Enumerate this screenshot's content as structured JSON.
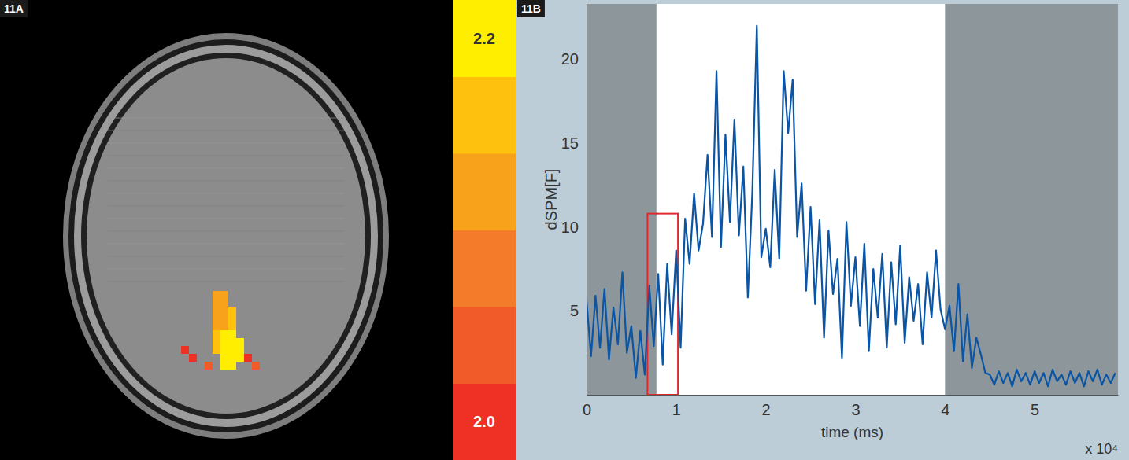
{
  "chart_data": [
    {
      "type": "heatmap",
      "label": "11A",
      "cells": [
        {
          "row": 37,
          "col": 27,
          "value": 2.12
        },
        {
          "row": 38,
          "col": 27,
          "value": 2.12
        },
        {
          "row": 39,
          "col": 27,
          "value": 2.12
        },
        {
          "row": 40,
          "col": 27,
          "value": 2.12
        },
        {
          "row": 41,
          "col": 27,
          "value": 2.12
        },
        {
          "row": 42,
          "col": 27,
          "value": 2.16
        },
        {
          "row": 43,
          "col": 27,
          "value": 2.16
        },
        {
          "row": 44,
          "col": 27,
          "value": 2.16
        },
        {
          "row": 37,
          "col": 28,
          "value": 2.12
        },
        {
          "row": 38,
          "col": 28,
          "value": 2.12
        },
        {
          "row": 39,
          "col": 28,
          "value": 2.12
        },
        {
          "row": 40,
          "col": 28,
          "value": 2.12
        },
        {
          "row": 41,
          "col": 28,
          "value": 2.12
        },
        {
          "row": 42,
          "col": 28,
          "value": 2.2
        },
        {
          "row": 43,
          "col": 28,
          "value": 2.2
        },
        {
          "row": 44,
          "col": 28,
          "value": 2.2
        },
        {
          "row": 45,
          "col": 28,
          "value": 2.2
        },
        {
          "row": 46,
          "col": 28,
          "value": 2.2
        },
        {
          "row": 39,
          "col": 29,
          "value": 2.15
        },
        {
          "row": 40,
          "col": 29,
          "value": 2.15
        },
        {
          "row": 41,
          "col": 29,
          "value": 2.15
        },
        {
          "row": 42,
          "col": 29,
          "value": 2.2
        },
        {
          "row": 43,
          "col": 29,
          "value": 2.2
        },
        {
          "row": 44,
          "col": 29,
          "value": 2.2
        },
        {
          "row": 45,
          "col": 29,
          "value": 2.2
        },
        {
          "row": 46,
          "col": 29,
          "value": 2.2
        },
        {
          "row": 43,
          "col": 30,
          "value": 2.18
        },
        {
          "row": 44,
          "col": 30,
          "value": 2.18
        },
        {
          "row": 45,
          "col": 30,
          "value": 2.18
        },
        {
          "row": 44,
          "col": 23,
          "value": 2.02
        },
        {
          "row": 45,
          "col": 24,
          "value": 2.03
        },
        {
          "row": 46,
          "col": 26,
          "value": 2.05
        },
        {
          "row": 46,
          "col": 32,
          "value": 2.04
        },
        {
          "row": 45,
          "col": 31,
          "value": 2.01
        }
      ],
      "colorbar": {
        "range": [
          2.0,
          2.2
        ],
        "ticks": [
          {
            "value": 2.0,
            "label": "2.0"
          },
          2.2
        ],
        "colors": [
          "#ee3124",
          "#f15a29",
          "#f47b2a",
          "#f8a11b",
          "#fec20e",
          "#ffee00"
        ]
      }
    },
    {
      "type": "line",
      "label": "11B",
      "y_label": "dSPM[F]",
      "x_label": "time (ms)",
      "x_exponent_label": "x 10⁴",
      "xlim": [
        0,
        5.93
      ],
      "ylim": [
        0,
        23.3
      ],
      "xticks": [
        0,
        1,
        2,
        3,
        4,
        5
      ],
      "yticks": [
        5,
        10,
        15,
        20
      ],
      "shaded_regions": [
        [
          0,
          0.78
        ],
        [
          4.0,
          5.93
        ]
      ],
      "highlight_window": {
        "x": [
          0.68,
          1.02
        ],
        "y": [
          0,
          10.8
        ]
      },
      "x": [
        0,
        0.05,
        0.1,
        0.15,
        0.2,
        0.25,
        0.3,
        0.35,
        0.4,
        0.45,
        0.5,
        0.55,
        0.6,
        0.65,
        0.7,
        0.75,
        0.8,
        0.85,
        0.9,
        0.95,
        1.0,
        1.05,
        1.1,
        1.15,
        1.2,
        1.25,
        1.3,
        1.35,
        1.4,
        1.45,
        1.5,
        1.55,
        1.6,
        1.65,
        1.7,
        1.75,
        1.8,
        1.85,
        1.9,
        1.95,
        2.0,
        2.05,
        2.1,
        2.15,
        2.2,
        2.25,
        2.3,
        2.35,
        2.4,
        2.45,
        2.5,
        2.55,
        2.6,
        2.65,
        2.7,
        2.75,
        2.8,
        2.85,
        2.9,
        2.95,
        3.0,
        3.05,
        3.1,
        3.15,
        3.2,
        3.25,
        3.3,
        3.35,
        3.4,
        3.45,
        3.5,
        3.55,
        3.6,
        3.65,
        3.7,
        3.75,
        3.8,
        3.85,
        3.9,
        3.95,
        4.0,
        4.05,
        4.1,
        4.15,
        4.2,
        4.25,
        4.3,
        4.35,
        4.4,
        4.45,
        4.5,
        4.55,
        4.6,
        4.65,
        4.7,
        4.75,
        4.8,
        4.85,
        4.9,
        4.95,
        5.0,
        5.05,
        5.1,
        5.15,
        5.2,
        5.25,
        5.3,
        5.35,
        5.4,
        5.45,
        5.5,
        5.55,
        5.6,
        5.65,
        5.7,
        5.75,
        5.8,
        5.85,
        5.9
      ],
      "series": [
        {
          "color": "#0a55a5",
          "values": [
            5.6,
            2.3,
            5.9,
            2.8,
            6.3,
            2.1,
            5.2,
            3.0,
            7.3,
            2.5,
            4.1,
            1.0,
            3.8,
            1.2,
            6.5,
            2.9,
            7.2,
            1.8,
            7.8,
            3.6,
            8.6,
            2.8,
            10.5,
            7.8,
            12.0,
            8.6,
            10.2,
            14.3,
            9.4,
            19.3,
            8.8,
            15.5,
            10.3,
            16.4,
            9.5,
            13.6,
            5.8,
            12.1,
            22.0,
            8.2,
            9.9,
            7.6,
            13.4,
            8.1,
            19.3,
            15.6,
            18.8,
            9.4,
            12.6,
            6.2,
            11.2,
            5.4,
            10.4,
            3.4,
            9.8,
            6.0,
            8.1,
            2.2,
            10.3,
            5.3,
            8.2,
            4.1,
            9.0,
            2.6,
            7.5,
            4.6,
            8.4,
            2.8,
            7.9,
            4.2,
            8.9,
            3.1,
            7.0,
            4.4,
            6.6,
            3.0,
            7.3,
            4.6,
            8.6,
            5.1,
            3.9,
            5.3,
            2.6,
            6.6,
            2.0,
            4.8,
            1.6,
            3.4,
            2.4,
            1.3,
            1.2,
            0.6,
            1.4,
            0.7,
            1.3,
            0.5,
            1.5,
            0.8,
            1.3,
            0.6,
            1.4,
            0.7,
            1.3,
            0.5,
            1.5,
            0.8,
            1.2,
            0.6,
            1.4,
            0.7,
            1.3,
            0.5,
            1.4,
            0.8,
            1.5,
            0.6,
            1.2,
            0.7,
            1.3
          ]
        }
      ]
    }
  ]
}
